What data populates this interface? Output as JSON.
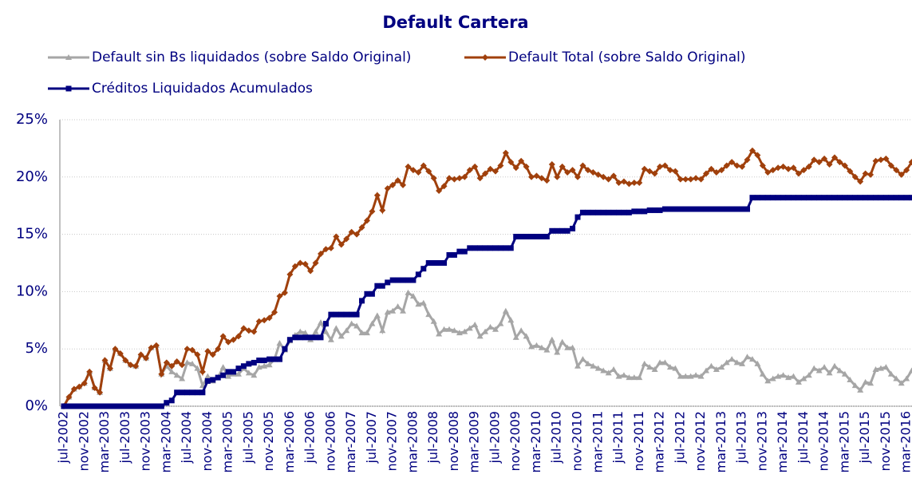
{
  "chart_data": {
    "type": "line",
    "title": "Default Cartera",
    "categories": [
      "jul-2002",
      null,
      null,
      null,
      "nov-2002",
      null,
      null,
      null,
      "mar-2003",
      null,
      null,
      null,
      "jul-2003",
      null,
      null,
      null,
      "nov-2003",
      null,
      null,
      null,
      "mar-2004",
      null,
      null,
      null,
      "jul-2004",
      null,
      null,
      null,
      "nov-2004",
      null,
      null,
      null,
      "mar-2005",
      null,
      null,
      null,
      "jul-2005",
      null,
      null,
      null,
      "nov-2005",
      null,
      null,
      null,
      "mar-2006",
      null,
      null,
      null,
      "jul-2006",
      null,
      null,
      null,
      "nov-2006",
      null,
      null,
      null,
      "mar-2007",
      null,
      null,
      null,
      "jul-2007",
      null,
      null,
      null,
      "nov-2007",
      null,
      null,
      null,
      "mar-2008",
      null,
      null,
      null,
      "jul-2008",
      null,
      null,
      null,
      "nov-2008",
      null,
      null,
      null,
      "mar-2009",
      null,
      null,
      null,
      "jul-2009",
      null,
      null,
      null,
      "nov-2009",
      null,
      null,
      null,
      "mar-2010",
      null,
      null,
      null,
      "jul-2010",
      null,
      null,
      null,
      "nov-2010",
      null,
      null,
      null,
      "mar-2011",
      null,
      null,
      null,
      "jul-2011",
      null,
      null,
      null,
      "nov-2011",
      null,
      null,
      null,
      "mar-2012",
      null,
      null,
      null,
      "jul-2012",
      null,
      null,
      null,
      "nov-2012",
      null,
      null,
      null,
      "mar-2013",
      null,
      null,
      null,
      "jul-2013",
      null,
      null,
      null,
      "nov-2013",
      null,
      null,
      null,
      "mar-2014",
      null,
      null,
      null,
      "jul-2014",
      null,
      null,
      null,
      "nov-2014",
      null,
      null,
      null,
      "mar-2015",
      null,
      null,
      null,
      "jul-2015",
      null,
      null,
      null,
      "nov-2015",
      null,
      null,
      null,
      "mar-2016",
      null
    ],
    "series": [
      {
        "name": "Default sin Bs liquidados (sobre Saldo Original)",
        "color": "#a6a6a6",
        "marker": "triangle",
        "values": [
          0.0,
          0.8,
          1.5,
          1.7,
          2.0,
          3.0,
          1.6,
          1.2,
          4.0,
          3.3,
          5.0,
          4.6,
          4.0,
          3.6,
          3.5,
          4.5,
          4.2,
          5.1,
          5.3,
          2.8,
          3.5,
          3.0,
          2.7,
          2.4,
          3.8,
          3.7,
          3.3,
          1.8,
          2.6,
          2.2,
          2.5,
          3.4,
          2.6,
          2.8,
          2.8,
          3.3,
          2.9,
          2.7,
          3.4,
          3.5,
          3.6,
          4.1,
          5.5,
          4.9,
          5.7,
          6.2,
          6.5,
          6.4,
          5.8,
          6.5,
          7.3,
          6.5,
          5.8,
          6.8,
          6.1,
          6.6,
          7.2,
          7.0,
          6.4,
          6.4,
          7.2,
          7.9,
          6.6,
          8.2,
          8.3,
          8.7,
          8.3,
          9.9,
          9.6,
          8.9,
          9.0,
          8.0,
          7.4,
          6.3,
          6.7,
          6.7,
          6.6,
          6.4,
          6.5,
          6.8,
          7.1,
          6.1,
          6.5,
          6.9,
          6.7,
          7.2,
          8.3,
          7.5,
          6.0,
          6.6,
          6.1,
          5.2,
          5.3,
          5.1,
          4.9,
          5.8,
          4.7,
          5.6,
          5.1,
          5.1,
          3.5,
          4.1,
          3.7,
          3.5,
          3.3,
          3.1,
          2.9,
          3.2,
          2.6,
          2.7,
          2.5,
          2.5,
          2.5,
          3.7,
          3.4,
          3.2,
          3.8,
          3.8,
          3.4,
          3.3,
          2.6,
          2.6,
          2.6,
          2.7,
          2.6,
          3.1,
          3.5,
          3.2,
          3.4,
          3.8,
          4.1,
          3.8,
          3.7,
          4.3,
          4.1,
          3.7,
          2.8,
          2.2,
          2.4,
          2.6,
          2.7,
          2.5,
          2.6,
          2.1,
          2.4,
          2.7,
          3.3,
          3.1,
          3.4,
          2.9,
          3.5,
          3.1,
          2.8,
          2.3,
          1.8,
          1.4,
          2.1,
          2.0,
          3.2,
          3.3,
          3.4,
          2.8,
          2.4,
          2.0,
          2.4,
          3.1
        ]
      },
      {
        "name": "Default Total (sobre Saldo Original)",
        "color": "#a0400c",
        "marker": "diamond",
        "values": [
          0.0,
          0.8,
          1.5,
          1.7,
          2.0,
          3.0,
          1.6,
          1.2,
          4.0,
          3.3,
          5.0,
          4.6,
          4.0,
          3.6,
          3.5,
          4.5,
          4.2,
          5.1,
          5.3,
          2.8,
          3.8,
          3.5,
          3.9,
          3.6,
          5.0,
          4.9,
          4.5,
          3.0,
          4.8,
          4.5,
          5.0,
          6.1,
          5.6,
          5.8,
          6.1,
          6.8,
          6.6,
          6.5,
          7.4,
          7.5,
          7.7,
          8.2,
          9.6,
          9.9,
          11.5,
          12.2,
          12.5,
          12.4,
          11.8,
          12.5,
          13.3,
          13.7,
          13.8,
          14.8,
          14.1,
          14.6,
          15.2,
          15.0,
          15.6,
          16.2,
          17.0,
          18.4,
          17.1,
          19.0,
          19.3,
          19.7,
          19.3,
          20.9,
          20.6,
          20.4,
          21.0,
          20.5,
          19.9,
          18.8,
          19.2,
          19.9,
          19.8,
          19.9,
          20.0,
          20.6,
          20.9,
          19.9,
          20.3,
          20.7,
          20.5,
          21.0,
          22.1,
          21.3,
          20.8,
          21.4,
          20.9,
          20.0,
          20.1,
          19.9,
          19.7,
          21.1,
          20.0,
          20.9,
          20.4,
          20.6,
          20.0,
          21.0,
          20.6,
          20.4,
          20.2,
          20.0,
          19.8,
          20.1,
          19.5,
          19.6,
          19.4,
          19.5,
          19.5,
          20.7,
          20.5,
          20.3,
          20.9,
          21.0,
          20.6,
          20.5,
          19.8,
          19.8,
          19.8,
          19.9,
          19.8,
          20.3,
          20.7,
          20.4,
          20.6,
          21.0,
          21.3,
          21.0,
          20.9,
          21.5,
          22.3,
          21.9,
          21.0,
          20.4,
          20.6,
          20.8,
          20.9,
          20.7,
          20.8,
          20.3,
          20.6,
          20.9,
          21.5,
          21.3,
          21.6,
          21.1,
          21.7,
          21.3,
          21.0,
          20.5,
          20.0,
          19.6,
          20.3,
          20.2,
          21.4,
          21.5,
          21.6,
          21.0,
          20.6,
          20.2,
          20.6,
          21.3
        ]
      },
      {
        "name": "Créditos Liquidados Acumulados",
        "color": "#000080",
        "marker": "square",
        "values": [
          0,
          0,
          0,
          0,
          0,
          0,
          0,
          0,
          0,
          0,
          0,
          0,
          0,
          0,
          0,
          0,
          0,
          0,
          0,
          0,
          0.3,
          0.5,
          1.2,
          1.2,
          1.2,
          1.2,
          1.2,
          1.2,
          2.2,
          2.3,
          2.5,
          2.7,
          3.0,
          3.0,
          3.3,
          3.5,
          3.7,
          3.8,
          4.0,
          4.0,
          4.1,
          4.1,
          4.1,
          5.0,
          5.8,
          6.0,
          6.0,
          6.0,
          6.0,
          6.0,
          6.0,
          7.2,
          8.0,
          8.0,
          8.0,
          8.0,
          8.0,
          8.0,
          9.2,
          9.8,
          9.8,
          10.5,
          10.5,
          10.8,
          11.0,
          11.0,
          11.0,
          11.0,
          11.0,
          11.5,
          12.0,
          12.5,
          12.5,
          12.5,
          12.5,
          13.2,
          13.2,
          13.5,
          13.5,
          13.8,
          13.8,
          13.8,
          13.8,
          13.8,
          13.8,
          13.8,
          13.8,
          13.8,
          14.8,
          14.8,
          14.8,
          14.8,
          14.8,
          14.8,
          14.8,
          15.3,
          15.3,
          15.3,
          15.3,
          15.5,
          16.5,
          16.9,
          16.9,
          16.9,
          16.9,
          16.9,
          16.9,
          16.9,
          16.9,
          16.9,
          16.9,
          17.0,
          17.0,
          17.0,
          17.1,
          17.1,
          17.1,
          17.2,
          17.2,
          17.2,
          17.2,
          17.2,
          17.2,
          17.2,
          17.2,
          17.2,
          17.2,
          17.2,
          17.2,
          17.2,
          17.2,
          17.2,
          17.2,
          17.2,
          18.2,
          18.2,
          18.2,
          18.2,
          18.2,
          18.2,
          18.2,
          18.2,
          18.2,
          18.2,
          18.2,
          18.2,
          18.2,
          18.2,
          18.2,
          18.2,
          18.2,
          18.2,
          18.2,
          18.2,
          18.2,
          18.2,
          18.2,
          18.2,
          18.2,
          18.2,
          18.2,
          18.2,
          18.2,
          18.2,
          18.2,
          18.2
        ]
      }
    ],
    "ylim": [
      0,
      25
    ],
    "yticks": [
      {
        "value": 0,
        "label": "0%"
      },
      {
        "value": 5,
        "label": "5%"
      },
      {
        "value": 10,
        "label": "10%"
      },
      {
        "value": 15,
        "label": "15%"
      },
      {
        "value": 20,
        "label": "20%"
      },
      {
        "value": 25,
        "label": "25%"
      }
    ],
    "grid": true
  }
}
